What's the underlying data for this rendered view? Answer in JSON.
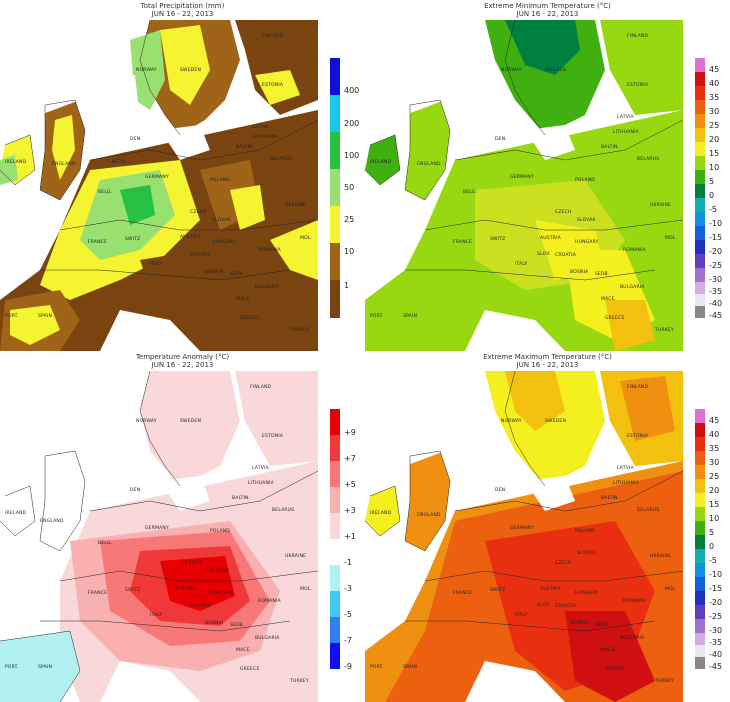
{
  "panels": [
    {
      "id": "precip",
      "title": "Total Precipitation  (mm)",
      "subtitle": "JUN 16 - 22, 2013",
      "legend": [
        {
          "label": "400",
          "color": "#1010d8"
        },
        {
          "label": "200",
          "color": "#18c8e8"
        },
        {
          "label": "100",
          "color": "#28c040"
        },
        {
          "label": "50",
          "color": "#98e070"
        },
        {
          "label": "25",
          "color": "#f4f430"
        },
        {
          "label": "10",
          "color": "#a06418"
        },
        {
          "label": "1",
          "color": "#7a4410"
        }
      ],
      "countries": [
        "FINLAND",
        "NORWAY",
        "SWEDEN",
        "ESTONIA",
        "LATVIA",
        "LITHUANIA",
        "BALTIN.",
        "BELARUS",
        "POLAND",
        "GERMANY",
        "DEN.",
        "FRANCE",
        "SWITZ",
        "AUSTRIA",
        "CZECH",
        "SLOVAK",
        "HUNGARY",
        "ROMANIA",
        "ITALY",
        "CROATIA",
        "SERB.",
        "BOSNIA",
        "BULGARIA",
        "MACE.",
        "GREECE",
        "TURKEY",
        "ENGLAND",
        "IRELAND",
        "SPAIN",
        "PORT.",
        "UKRAINE",
        "MOL.",
        "BELG.",
        "NETH."
      ]
    },
    {
      "id": "tmin",
      "title": "Extreme Minimum Temperature  (°C)",
      "subtitle": "JUN 16 - 22, 2013",
      "legend": [
        {
          "label": "45",
          "color": "#e070d0"
        },
        {
          "label": "40",
          "color": "#d01010"
        },
        {
          "label": "35",
          "color": "#e83010"
        },
        {
          "label": "30",
          "color": "#ec6010"
        },
        {
          "label": "25",
          "color": "#f09010"
        },
        {
          "label": "20",
          "color": "#f4c010"
        },
        {
          "label": "15",
          "color": "#f4f020"
        },
        {
          "label": "10",
          "color": "#98d810"
        },
        {
          "label": "5",
          "color": "#40b010"
        },
        {
          "label": "0",
          "color": "#008040"
        },
        {
          "label": "-5",
          "color": "#10b0b0"
        },
        {
          "label": "-10",
          "color": "#1090e0"
        },
        {
          "label": "-15",
          "color": "#1060e0"
        },
        {
          "label": "-20",
          "color": "#2030c0"
        },
        {
          "label": "-25",
          "color": "#6040c0"
        },
        {
          "label": "-30",
          "color": "#a070d0"
        },
        {
          "label": "-35",
          "color": "#d8a8e8"
        },
        {
          "label": "-40",
          "color": "#e8e8f0"
        },
        {
          "label": "-45",
          "color": "#888888"
        }
      ],
      "countries": [
        "NORWAY",
        "SWEDEN",
        "FINLAND",
        "ESTONIA",
        "LATVIA",
        "LITHUANIA",
        "BALTIN.",
        "BELARUS",
        "POLAND",
        "GERMANY",
        "DEN.",
        "FRANCE",
        "SWITZ",
        "AUSTRIA",
        "CZECH",
        "SLOVAK",
        "HUNGARY",
        "ROMANIA",
        "ITALY",
        "CROATIA",
        "SERB.",
        "BOSNIA",
        "BULGARIA",
        "MACE.",
        "GREECE",
        "TURKEY",
        "ENGLAND",
        "IRELAND",
        "SPAIN",
        "PORT.",
        "UKRAINE",
        "MOL.",
        "SLOV.",
        "BELG."
      ]
    },
    {
      "id": "anom",
      "title": "Temperature Anomaly  (°C)",
      "subtitle": "JUN 16 - 22, 2013",
      "legend": [
        {
          "label": "+9",
          "color": "#e80000"
        },
        {
          "label": "+7",
          "color": "#f03838"
        },
        {
          "label": "+5",
          "color": "#f87878"
        },
        {
          "label": "+3",
          "color": "#f8b0b0"
        },
        {
          "label": "+1",
          "color": "#f8d8d8"
        },
        {
          "label": "-1",
          "color": "#ffffff"
        },
        {
          "label": "-3",
          "color": "#b0f0f0"
        },
        {
          "label": "-5",
          "color": "#40c8f0"
        },
        {
          "label": "-7",
          "color": "#3080f0"
        },
        {
          "label": "-9",
          "color": "#1010f0"
        }
      ],
      "countries": [
        "FINLAND",
        "NORWAY",
        "SWEDEN",
        "ESTONIA",
        "LATVIA",
        "LITHUANIA",
        "BALTIN.",
        "BELARUS",
        "POLAND",
        "GERMANY",
        "DEN.",
        "FRANCE",
        "SWITZ",
        "AUSTRIA",
        "CZECH",
        "SLOVAK",
        "HUNGARY",
        "ROMANIA",
        "ITALY",
        "CROATIA",
        "SERB.",
        "BOSNIA",
        "BULGARIA",
        "MACE.",
        "GREECE",
        "TURKEY",
        "ENGLAND",
        "IRELAND",
        "SPAIN",
        "PORT.",
        "UKRAINE",
        "MOL.",
        "BELG."
      ]
    },
    {
      "id": "tmax",
      "title": "Extreme Maximum Temperature  (°C)",
      "subtitle": "JUN 16 - 22, 2013",
      "legend": [
        {
          "label": "45",
          "color": "#e070d0"
        },
        {
          "label": "40",
          "color": "#d01010"
        },
        {
          "label": "35",
          "color": "#e83010"
        },
        {
          "label": "30",
          "color": "#ec6010"
        },
        {
          "label": "25",
          "color": "#f09010"
        },
        {
          "label": "20",
          "color": "#f4c010"
        },
        {
          "label": "15",
          "color": "#f4f020"
        },
        {
          "label": "10",
          "color": "#98d810"
        },
        {
          "label": "5",
          "color": "#40b010"
        },
        {
          "label": "0",
          "color": "#008040"
        },
        {
          "label": "-5",
          "color": "#10b0b0"
        },
        {
          "label": "-10",
          "color": "#1090e0"
        },
        {
          "label": "-15",
          "color": "#1060e0"
        },
        {
          "label": "-20",
          "color": "#2030c0"
        },
        {
          "label": "-25",
          "color": "#6040c0"
        },
        {
          "label": "-30",
          "color": "#a070d0"
        },
        {
          "label": "-35",
          "color": "#d8a8e8"
        },
        {
          "label": "-40",
          "color": "#e8e8f0"
        },
        {
          "label": "-45",
          "color": "#888888"
        }
      ],
      "countries": [
        "NORWAY",
        "SWEDEN",
        "FINLAND",
        "ESTONIA",
        "LATVIA",
        "LITHUANIA",
        "BALTIN.",
        "BELARUS",
        "POLAND",
        "GERMANY",
        "DEN.",
        "FRANCE",
        "SWITZ",
        "AUSTRIA",
        "CZECH",
        "SLOVAK",
        "HUNGARY",
        "ROMANIA",
        "ITALY",
        "CROATIA",
        "SERB.",
        "BOSNIA",
        "BULGARIA",
        "MACE.",
        "GREECE",
        "TURKEY",
        "ENGLAND",
        "IRELAND",
        "SPAIN",
        "PORT.",
        "UKRAINE",
        "MOL.",
        "SLOV."
      ]
    }
  ]
}
